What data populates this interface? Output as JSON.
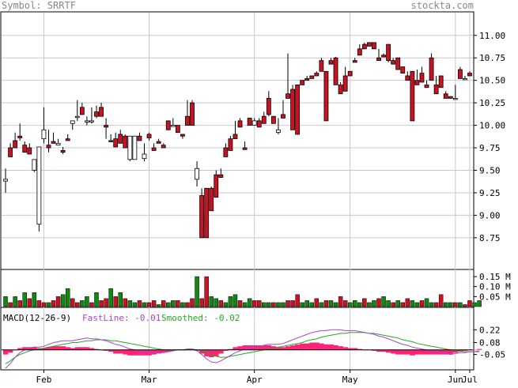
{
  "header": {
    "symbol_label": "Symbol: SRRTF",
    "site": "stockta.com"
  },
  "colors": {
    "background": "#ffffff",
    "panel_border": "#000000",
    "grid": "#c8c8c8",
    "up_candle": "#ffffff",
    "down_candle": "#cc1122",
    "volume_up": "#118811",
    "volume_down": "#cc1122",
    "fastline": "#aa44cc",
    "smoothed": "#22aa22",
    "histogram": "#ff2277",
    "header_text": "#888888"
  },
  "chart_data": [
    {
      "type": "candlestick",
      "title": "",
      "ylim": [
        8.45,
        11.2
      ],
      "y_ticks": [
        "11.00",
        "10.75",
        "10.50",
        "10.25",
        "10.00",
        "9.75",
        "9.50",
        "9.25",
        "9.00",
        "8.75"
      ],
      "x_labels": [
        "Feb",
        "Mar",
        "Apr",
        "May",
        "Jun",
        "Jul"
      ],
      "candles": [
        [
          9.38,
          9.52,
          9.25,
          9.4
        ],
        [
          9.75,
          9.65,
          9.8,
          9.65
        ],
        [
          9.83,
          9.92,
          9.85,
          9.75
        ],
        [
          9.88,
          10.02,
          9.83,
          9.86
        ],
        [
          9.78,
          9.82,
          9.7,
          9.7
        ],
        [
          9.75,
          9.8,
          9.7,
          9.68
        ],
        [
          9.5,
          9.48,
          9.6,
          9.62
        ],
        [
          8.9,
          9.7,
          8.82,
          9.76
        ],
        [
          9.85,
          10.2,
          9.8,
          9.95
        ],
        [
          9.78,
          9.95,
          9.7,
          9.75
        ],
        [
          9.82,
          9.92,
          9.8,
          9.8
        ],
        [
          9.78,
          9.78,
          9.85,
          9.8
        ],
        [
          9.72,
          9.76,
          9.68,
          9.7
        ],
        [
          9.85,
          9.9,
          9.83,
          9.83
        ],
        [
          10.02,
          9.95,
          9.98,
          10.05
        ],
        [
          10.1,
          10.28,
          10.05,
          10.1
        ],
        [
          10.2,
          10.25,
          10.15,
          10.12
        ],
        [
          10.05,
          10.1,
          10.0,
          10.05
        ],
        [
          10.05,
          10.2,
          10.02,
          10.05
        ],
        [
          10.15,
          10.22,
          10.08,
          10.1
        ],
        [
          10.2,
          10.25,
          10.18,
          10.1
        ],
        [
          10.0,
          10.08,
          9.85,
          9.98
        ],
        [
          9.83,
          9.85,
          9.9,
          9.82
        ],
        [
          9.85,
          9.92,
          9.78,
          9.76
        ],
        [
          9.9,
          9.95,
          9.88,
          9.8
        ],
        [
          9.88,
          9.85,
          9.9,
          9.75
        ],
        [
          9.62,
          9.6,
          9.85,
          9.88
        ],
        [
          9.62,
          9.62,
          9.86,
          9.88
        ],
        [
          9.88,
          9.92,
          9.85,
          9.83
        ],
        [
          9.63,
          9.8,
          9.6,
          9.68
        ],
        [
          9.9,
          9.92,
          9.83,
          9.86
        ],
        [
          9.75,
          9.8,
          9.76,
          9.72
        ],
        [
          9.82,
          9.85,
          9.8,
          9.8
        ],
        [
          9.78,
          9.8,
          9.75,
          9.75
        ],
        [
          10.05,
          10.02,
          10.0,
          9.95
        ],
        [
          10.0,
          10.08,
          10.02,
          10.0
        ],
        [
          10.0,
          10.0,
          9.95,
          9.92
        ],
        [
          9.9,
          9.9,
          9.85,
          9.88
        ],
        [
          10.1,
          10.28,
          10.02,
          10.0
        ],
        [
          10.25,
          10.28,
          10.08,
          10.0
        ],
        [
          9.4,
          9.6,
          9.32,
          9.52
        ],
        [
          9.22,
          9.3,
          8.78,
          8.75
        ],
        [
          9.3,
          9.0,
          8.75,
          8.75
        ],
        [
          9.3,
          9.32,
          9.1,
          9.05
        ],
        [
          9.45,
          9.5,
          9.3,
          9.2
        ],
        [
          9.45,
          9.52,
          9.42,
          9.42
        ],
        [
          9.75,
          9.8,
          9.68,
          9.65
        ],
        [
          9.85,
          9.88,
          9.75,
          9.72
        ],
        [
          9.9,
          10.05,
          9.85,
          9.85
        ],
        [
          10.05,
          10.08,
          9.98,
          9.98
        ],
        [
          9.75,
          9.82,
          9.76,
          9.73
        ],
        [
          10.08,
          10.0,
          10.02,
          10.0
        ],
        [
          10.0,
          10.0,
          10.08,
          10.05
        ],
        [
          10.05,
          10.05,
          10.08,
          9.98
        ],
        [
          10.1,
          10.15,
          10.05,
          10.02
        ],
        [
          10.3,
          10.38,
          10.1,
          10.12
        ],
        [
          10.1,
          10.08,
          10.1,
          10.02
        ],
        [
          9.92,
          10.08,
          9.9,
          9.95
        ],
        [
          10.12,
          10.28,
          10.1,
          10.08
        ],
        [
          10.35,
          10.8,
          10.3,
          10.3
        ],
        [
          10.4,
          10.45,
          10.0,
          9.95
        ],
        [
          10.45,
          10.45,
          9.9,
          9.9
        ],
        [
          10.5,
          10.5,
          10.45,
          10.45
        ],
        [
          10.52,
          10.55,
          10.5,
          10.5
        ],
        [
          10.55,
          10.55,
          10.52,
          10.52
        ],
        [
          10.58,
          10.6,
          10.55,
          10.55
        ],
        [
          10.72,
          10.75,
          10.65,
          10.6
        ],
        [
          10.6,
          10.6,
          10.05,
          10.05
        ],
        [
          10.72,
          10.75,
          10.7,
          10.68
        ],
        [
          10.75,
          10.76,
          10.5,
          10.45
        ],
        [
          10.45,
          10.48,
          10.35,
          10.35
        ],
        [
          10.55,
          10.65,
          10.4,
          10.38
        ],
        [
          10.6,
          10.6,
          10.6,
          10.55
        ],
        [
          10.72,
          10.75,
          10.7,
          10.7
        ],
        [
          10.85,
          10.9,
          10.78,
          10.78
        ],
        [
          10.9,
          10.92,
          10.85,
          10.85
        ],
        [
          10.92,
          10.92,
          10.88,
          10.88
        ],
        [
          10.92,
          10.9,
          10.85,
          10.85
        ],
        [
          10.75,
          10.85,
          10.72,
          10.72
        ],
        [
          10.78,
          10.8,
          10.76,
          10.76
        ],
        [
          10.9,
          10.8,
          10.7,
          10.72
        ],
        [
          10.72,
          10.75,
          10.68,
          10.68
        ],
        [
          10.75,
          10.75,
          10.65,
          10.62
        ],
        [
          10.65,
          10.62,
          10.6,
          10.58
        ],
        [
          10.55,
          10.6,
          10.52,
          10.5
        ],
        [
          10.6,
          10.6,
          10.5,
          10.05
        ],
        [
          10.5,
          10.62,
          10.48,
          10.45
        ],
        [
          10.58,
          10.65,
          10.5,
          10.48
        ],
        [
          10.45,
          10.5,
          10.45,
          10.42
        ],
        [
          10.75,
          10.8,
          10.55,
          10.5
        ],
        [
          10.45,
          10.55,
          10.35,
          10.35
        ],
        [
          10.55,
          10.55,
          10.45,
          10.42
        ],
        [
          10.35,
          10.38,
          10.32,
          10.3
        ],
        [
          10.32,
          10.32,
          10.3,
          10.3
        ],
        [
          10.3,
          10.3,
          10.45,
          10.3
        ],
        [
          10.62,
          10.65,
          10.55,
          10.52
        ],
        [
          10.52,
          10.55,
          10.52,
          10.52
        ],
        [
          10.58,
          10.6,
          10.56,
          10.55
        ]
      ],
      "volume_ylim": [
        0,
        0.17
      ],
      "volume_ticks": [
        "0.15 M",
        "0.10 M",
        "0.05 M"
      ],
      "volume": [
        0.05,
        0.02,
        0.05,
        0.03,
        0.07,
        0.04,
        0.07,
        0.03,
        0.02,
        0.02,
        0.03,
        0.05,
        0.06,
        0.09,
        0.04,
        0.02,
        0.03,
        0.05,
        0.02,
        0.07,
        0.03,
        0.04,
        0.09,
        0.05,
        0.07,
        0.04,
        0.03,
        0.02,
        0.03,
        0.02,
        0.02,
        0.03,
        0.01,
        0.03,
        0.02,
        0.03,
        0.03,
        0.02,
        0.02,
        0.04,
        0.15,
        0.04,
        0.15,
        0.05,
        0.04,
        0.03,
        0.02,
        0.05,
        0.06,
        0.03,
        0.02,
        0.04,
        0.03,
        0.03,
        0.02,
        0.02,
        0.02,
        0.02,
        0.02,
        0.03,
        0.03,
        0.06,
        0.02,
        0.03,
        0.02,
        0.04,
        0.02,
        0.03,
        0.03,
        0.02,
        0.05,
        0.03,
        0.02,
        0.03,
        0.02,
        0.04,
        0.02,
        0.03,
        0.04,
        0.05,
        0.03,
        0.02,
        0.03,
        0.02,
        0.04,
        0.03,
        0.02,
        0.03,
        0.04,
        0.02,
        0.02,
        0.06,
        0.02,
        0.02,
        0.02,
        0.02,
        0.01,
        0.03,
        0.02,
        0.03
      ],
      "volume_up": [
        1,
        0,
        1,
        0,
        1,
        0,
        1,
        0,
        0,
        1,
        0,
        0,
        1,
        1,
        0,
        0,
        1,
        1,
        0,
        1,
        0,
        0,
        1,
        0,
        1,
        0,
        1,
        1,
        0,
        1,
        0,
        0,
        1,
        0,
        1,
        1,
        0,
        1,
        0,
        0,
        1,
        0,
        0,
        1,
        1,
        0,
        1,
        1,
        1,
        0,
        1,
        1,
        0,
        0,
        1,
        1,
        0,
        1,
        1,
        0,
        0,
        0,
        1,
        1,
        1,
        0,
        1,
        0,
        1,
        1,
        0,
        0,
        1,
        1,
        1,
        0,
        1,
        1,
        0,
        1,
        1,
        0,
        1,
        0,
        0,
        1,
        1,
        0,
        1,
        1,
        0,
        0,
        1,
        1,
        0,
        1,
        0,
        0,
        1,
        1
      ],
      "macd": {
        "label": "MACD(12-26-9)",
        "fastline_label": "FastLine: -0.01",
        "smoothed_label": "Smoothed: -0.02",
        "ylim": [
          -0.2,
          0.3
        ],
        "y_ticks": [
          "0.22",
          "0.08",
          "-0.05"
        ],
        "fast": [
          -0.2,
          -0.15,
          -0.08,
          -0.03,
          0.0,
          0.02,
          0.03,
          0.03,
          0.04,
          0.06,
          0.08,
          0.09,
          0.1,
          0.1,
          0.1,
          0.11,
          0.12,
          0.13,
          0.12,
          0.12,
          0.11,
          0.1,
          0.08,
          0.06,
          0.05,
          0.03,
          0.01,
          0.0,
          -0.01,
          -0.02,
          -0.03,
          -0.03,
          -0.03,
          -0.03,
          -0.02,
          -0.01,
          0.0,
          0.0,
          0.01,
          0.01,
          -0.01,
          -0.05,
          -0.1,
          -0.13,
          -0.14,
          -0.12,
          -0.09,
          -0.06,
          -0.03,
          -0.01,
          0.01,
          0.02,
          0.03,
          0.04,
          0.05,
          0.06,
          0.06,
          0.06,
          0.07,
          0.09,
          0.11,
          0.13,
          0.15,
          0.17,
          0.19,
          0.2,
          0.21,
          0.21,
          0.22,
          0.22,
          0.22,
          0.21,
          0.21,
          0.21,
          0.2,
          0.19,
          0.18,
          0.17,
          0.15,
          0.14,
          0.12,
          0.1,
          0.08,
          0.06,
          0.05,
          0.03,
          0.02,
          0.01,
          0.0,
          -0.01,
          -0.02,
          -0.03,
          -0.04,
          -0.05,
          -0.04,
          -0.03,
          -0.03,
          -0.02,
          -0.02,
          -0.01
        ],
        "smoothed": [
          -0.15,
          -0.12,
          -0.08,
          -0.05,
          -0.03,
          -0.01,
          0.0,
          0.01,
          0.02,
          0.03,
          0.04,
          0.05,
          0.06,
          0.07,
          0.08,
          0.08,
          0.09,
          0.1,
          0.1,
          0.11,
          0.11,
          0.11,
          0.1,
          0.1,
          0.09,
          0.08,
          0.07,
          0.06,
          0.05,
          0.04,
          0.03,
          0.02,
          0.01,
          0.0,
          0.0,
          0.0,
          0.0,
          0.0,
          0.0,
          0.0,
          0.0,
          -0.01,
          -0.03,
          -0.05,
          -0.07,
          -0.08,
          -0.08,
          -0.07,
          -0.06,
          -0.05,
          -0.04,
          -0.03,
          -0.02,
          -0.01,
          0.0,
          0.01,
          0.02,
          0.03,
          0.04,
          0.05,
          0.06,
          0.07,
          0.08,
          0.1,
          0.11,
          0.12,
          0.14,
          0.15,
          0.16,
          0.17,
          0.18,
          0.18,
          0.19,
          0.19,
          0.19,
          0.19,
          0.18,
          0.18,
          0.17,
          0.16,
          0.15,
          0.14,
          0.13,
          0.11,
          0.1,
          0.09,
          0.07,
          0.06,
          0.05,
          0.04,
          0.03,
          0.02,
          0.01,
          0.0,
          -0.01,
          -0.01,
          -0.02,
          -0.02,
          -0.02,
          -0.02
        ]
      }
    }
  ]
}
